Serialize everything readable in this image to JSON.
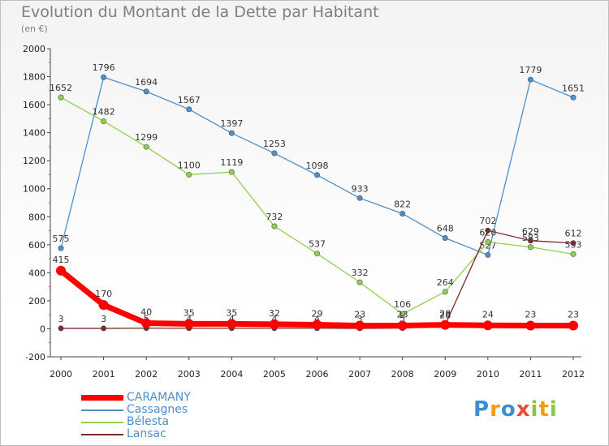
{
  "title": "Evolution du Montant de la Dette par Habitant",
  "subtitle": "(en €)",
  "logo": "Proxiti",
  "chart_data": {
    "type": "line",
    "x": [
      2000,
      2001,
      2002,
      2003,
      2004,
      2005,
      2006,
      2007,
      2008,
      2009,
      2010,
      2011,
      2012
    ],
    "ylim": [
      -200,
      2000
    ],
    "yticks": [
      -200,
      0,
      200,
      400,
      600,
      800,
      1000,
      1200,
      1400,
      1600,
      1800,
      2000
    ],
    "grid": false,
    "legend_position": "bottom-left",
    "series": [
      {
        "name": "Cassagnes",
        "color": "#4d8fc9",
        "values": [
          575,
          1796,
          1694,
          1567,
          1397,
          1253,
          1098,
          933,
          822,
          648,
          527,
          1779,
          1651
        ]
      },
      {
        "name": "Bélesta",
        "color": "#8fd14f",
        "values": [
          1652,
          1482,
          1299,
          1100,
          1119,
          732,
          537,
          332,
          106,
          264,
          620,
          583,
          533
        ]
      },
      {
        "name": "Lansac",
        "color": "#7b2b2b",
        "values": [
          3,
          3,
          5,
          4,
          4,
          4,
          4,
          3,
          5,
          28,
          702,
          629,
          612
        ]
      },
      {
        "name": "CARAMANY",
        "color": "#ff0000",
        "values": [
          415,
          170,
          40,
          35,
          35,
          32,
          29,
          23,
          23,
          28,
          24,
          23,
          23
        ]
      }
    ]
  }
}
